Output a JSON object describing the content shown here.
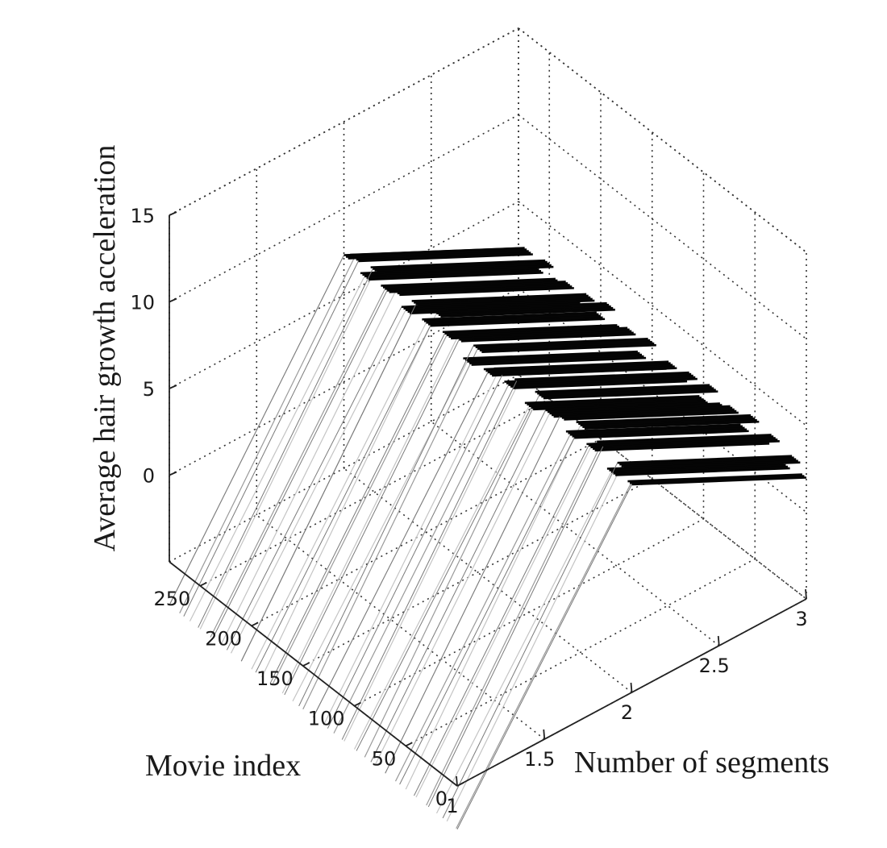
{
  "chart_data": {
    "type": "surface-3d",
    "title": "",
    "zlabel": "Average hair growth acceleration",
    "xlabel": "Movie index",
    "ylabel": "Number of segments",
    "x_ticks": [
      "0",
      "50",
      "100",
      "150",
      "200",
      "250"
    ],
    "y_ticks": [
      "1",
      "1.5",
      "2",
      "2.5",
      "3"
    ],
    "z_ticks": [
      "0",
      "5",
      "10",
      "15"
    ],
    "xlim": [
      0,
      280
    ],
    "ylim": [
      1,
      3
    ],
    "zlim": [
      -5,
      15
    ],
    "grid": true,
    "dashed_gridlines": true,
    "surface_color_low": "#bdbdbd",
    "surface_color_high": "#000000",
    "profiles": [
      {
        "segments": 1,
        "value": -7.5
      },
      {
        "segments": 2,
        "value": 7.5
      },
      {
        "segments": 3,
        "value": 2.5
      }
    ],
    "movie_value_samples": [
      {
        "movie_index": 1,
        "value": 2.5
      },
      {
        "movie_index": 10,
        "value": 3.1
      },
      {
        "movie_index": 20,
        "value": 2.3
      },
      {
        "movie_index": 30,
        "value": 3.4
      },
      {
        "movie_index": 40,
        "value": 2.8
      },
      {
        "movie_index": 50,
        "value": 3.6
      },
      {
        "movie_index": 60,
        "value": 2.6
      },
      {
        "movie_index": 70,
        "value": 3.2
      },
      {
        "movie_index": 80,
        "value": 2.9
      },
      {
        "movie_index": 90,
        "value": 3.5
      },
      {
        "movie_index": 100,
        "value": 2.4
      },
      {
        "movie_index": 110,
        "value": 3.3
      },
      {
        "movie_index": 120,
        "value": 2.7
      },
      {
        "movie_index": 130,
        "value": 3.0
      },
      {
        "movie_index": 140,
        "value": 2.5
      },
      {
        "movie_index": 150,
        "value": 3.4
      },
      {
        "movie_index": 160,
        "value": 2.2
      },
      {
        "movie_index": 170,
        "value": 3.1
      },
      {
        "movie_index": 180,
        "value": 2.8
      },
      {
        "movie_index": 190,
        "value": 3.6
      },
      {
        "movie_index": 200,
        "value": 2.6
      },
      {
        "movie_index": 210,
        "value": 3.2
      },
      {
        "movie_index": 220,
        "value": 2.4
      },
      {
        "movie_index": 230,
        "value": 3.0
      },
      {
        "movie_index": 240,
        "value": 2.7
      },
      {
        "movie_index": 250,
        "value": 3.3
      },
      {
        "movie_index": 260,
        "value": 2.5
      },
      {
        "movie_index": 270,
        "value": 3.1
      },
      {
        "movie_index": 280,
        "value": 2.8
      }
    ]
  }
}
